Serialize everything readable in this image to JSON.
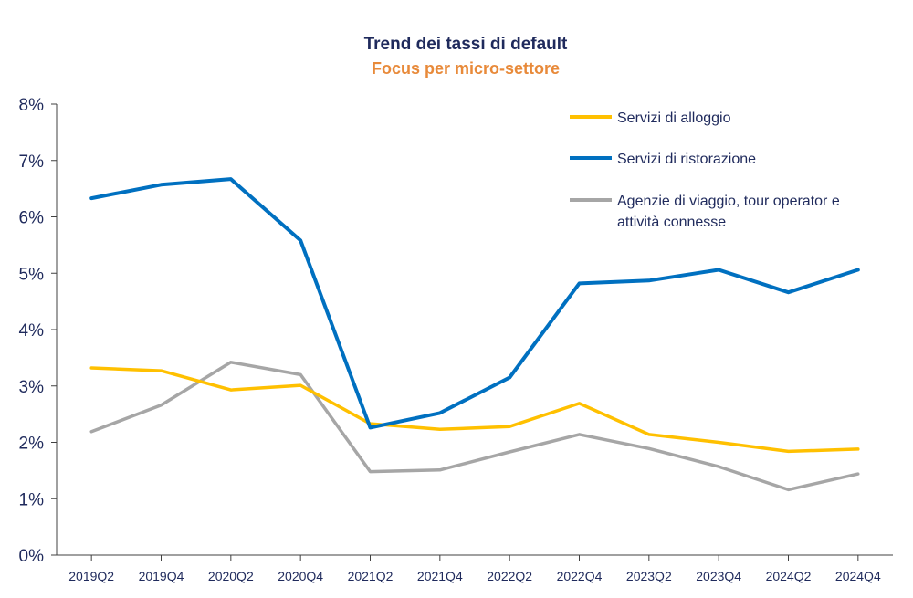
{
  "chart_data": {
    "type": "line",
    "title": "Trend dei tassi di default",
    "subtitle": "Focus per micro-settore",
    "categories": [
      "2019Q2",
      "2019Q4",
      "2020Q2",
      "2020Q4",
      "2021Q2",
      "2021Q4",
      "2022Q2",
      "2022Q4",
      "2023Q2",
      "2023Q4",
      "2024Q2",
      "2024Q4"
    ],
    "ylim": [
      0,
      8
    ],
    "yticks": [
      "0%",
      "1%",
      "2%",
      "3%",
      "4%",
      "5%",
      "6%",
      "7%",
      "8%"
    ],
    "grid": false,
    "legend_position": "top-right",
    "series": [
      {
        "name": "Servizi di alloggio",
        "color": "#ffc000",
        "values": [
          3.32,
          3.27,
          2.93,
          3.01,
          2.33,
          2.23,
          2.28,
          2.69,
          2.14,
          2.0,
          1.84,
          1.88
        ]
      },
      {
        "name": "Servizi di ristorazione",
        "color": "#0070c0",
        "values": [
          6.33,
          6.57,
          6.67,
          5.58,
          2.26,
          2.52,
          3.15,
          4.82,
          4.87,
          5.06,
          4.66,
          5.06
        ]
      },
      {
        "name": "Agenzie di viaggio, tour operator e attività connesse",
        "name_lines": [
          "Agenzie di viaggio, tour operator e",
          "attività connesse"
        ],
        "color": "#a6a6a6",
        "values": [
          2.19,
          2.66,
          3.42,
          3.2,
          1.48,
          1.51,
          1.83,
          2.14,
          1.89,
          1.57,
          1.16,
          1.44
        ]
      }
    ]
  }
}
